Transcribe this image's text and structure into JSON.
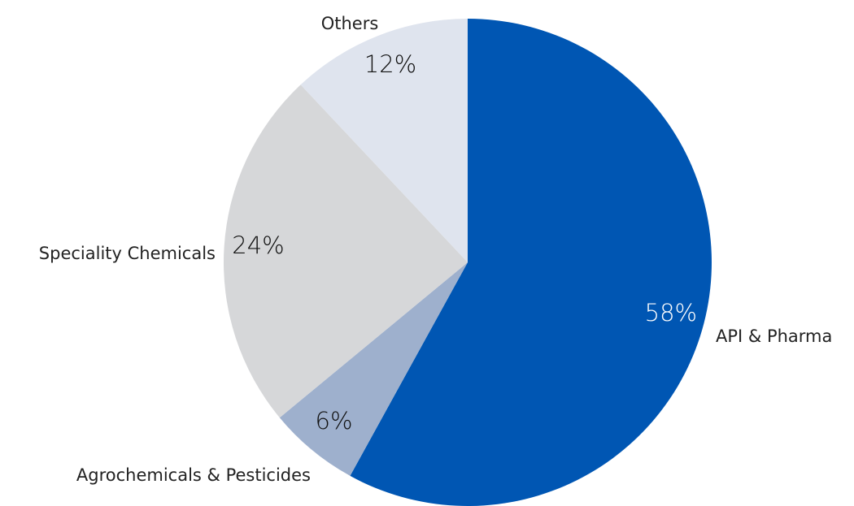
{
  "chart_data": {
    "type": "pie",
    "start": "12 o'clock",
    "direction": "clockwise",
    "slices": [
      {
        "label": "API & Pharma",
        "value": 58,
        "value_label": "58%",
        "color": "#0056b3",
        "value_color": "#ffffff"
      },
      {
        "label": "Agrochemicals & Pesticides",
        "value": 6,
        "value_label": "6%",
        "color": "#9eb0cd",
        "value_color": "#111111"
      },
      {
        "label": "Speciality Chemicals",
        "value": 24,
        "value_label": "24%",
        "color": "#d6d7d9",
        "value_color": "#111111"
      },
      {
        "label": "Others",
        "value": 12,
        "value_label": "12%",
        "color": "#dfe4ee",
        "value_color": "#111111"
      }
    ]
  }
}
